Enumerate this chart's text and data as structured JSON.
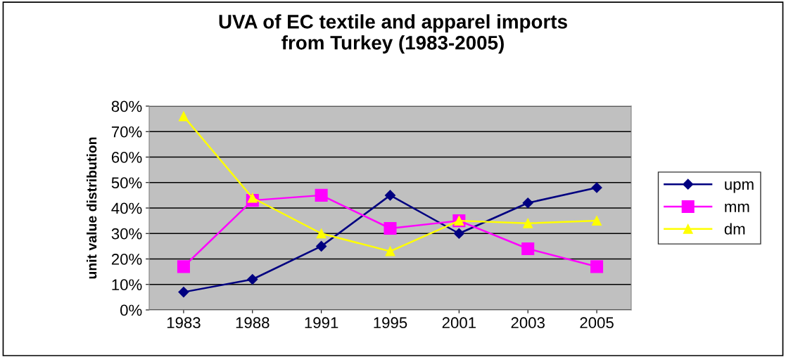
{
  "chart_data": {
    "type": "line",
    "title": "UVA of EC textile and apparel imports\nfrom Turkey (1983-2005)",
    "ylabel": "unit value distribution",
    "categories": [
      "1983",
      "1988",
      "1991",
      "1995",
      "2001",
      "2003",
      "2005"
    ],
    "series": [
      {
        "name": "upm",
        "color": "#000080",
        "marker": "diamond",
        "values": [
          0.07,
          0.12,
          0.25,
          0.45,
          0.3,
          0.42,
          0.48
        ]
      },
      {
        "name": "mm",
        "color": "#ff00ff",
        "marker": "square",
        "values": [
          0.17,
          0.43,
          0.45,
          0.32,
          0.35,
          0.24,
          0.17
        ]
      },
      {
        "name": "dm",
        "color": "#ffff00",
        "marker": "triangle",
        "values": [
          0.76,
          0.44,
          0.3,
          0.23,
          0.35,
          0.34,
          0.35
        ]
      }
    ],
    "ylim": [
      0,
      0.8
    ],
    "yticks": [
      {
        "value": 0,
        "label": "0%"
      },
      {
        "value": 0.1,
        "label": "10%"
      },
      {
        "value": 0.2,
        "label": "20%"
      },
      {
        "value": 0.3,
        "label": "30%"
      },
      {
        "value": 0.4,
        "label": "40%"
      },
      {
        "value": 0.5,
        "label": "50%"
      },
      {
        "value": 0.6,
        "label": "60%"
      },
      {
        "value": 0.7,
        "label": "70%"
      },
      {
        "value": 0.8,
        "label": "80%"
      }
    ],
    "grid": "y",
    "legend": "right",
    "line_style": "solid"
  }
}
